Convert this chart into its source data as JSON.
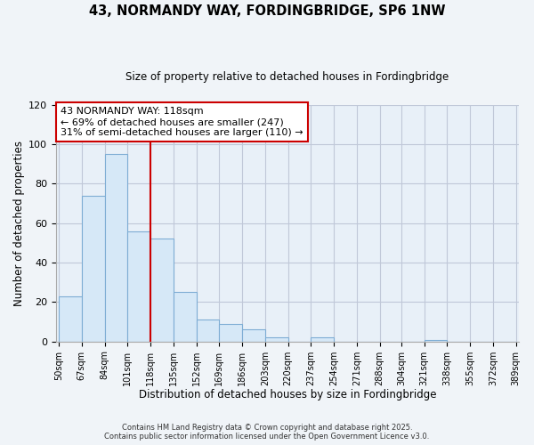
{
  "title": "43, NORMANDY WAY, FORDINGBRIDGE, SP6 1NW",
  "subtitle": "Size of property relative to detached houses in Fordingbridge",
  "xlabel": "Distribution of detached houses by size in Fordingbridge",
  "ylabel": "Number of detached properties",
  "bin_edges": [
    50,
    67,
    84,
    101,
    118,
    135,
    152,
    169,
    186,
    203,
    220,
    237,
    254,
    271,
    288,
    304,
    321,
    338,
    355,
    372,
    389
  ],
  "bin_labels": [
    "50sqm",
    "67sqm",
    "84sqm",
    "101sqm",
    "118sqm",
    "135sqm",
    "152sqm",
    "169sqm",
    "186sqm",
    "203sqm",
    "220sqm",
    "237sqm",
    "254sqm",
    "271sqm",
    "288sqm",
    "304sqm",
    "321sqm",
    "338sqm",
    "355sqm",
    "372sqm",
    "389sqm"
  ],
  "counts": [
    23,
    74,
    95,
    56,
    52,
    25,
    11,
    9,
    6,
    2,
    0,
    2,
    0,
    0,
    0,
    0,
    1,
    0,
    0,
    0
  ],
  "bar_color": "#d6e8f7",
  "bar_edge_color": "#7eadd4",
  "vline_x": 118,
  "vline_color": "#cc0000",
  "annotation_line1": "43 NORMANDY WAY: 118sqm",
  "annotation_line2": "← 69% of detached houses are smaller (247)",
  "annotation_line3": "31% of semi-detached houses are larger (110) →",
  "footer1": "Contains HM Land Registry data © Crown copyright and database right 2025.",
  "footer2": "Contains public sector information licensed under the Open Government Licence v3.0.",
  "ylim": [
    0,
    120
  ],
  "background_color": "#f0f4f8",
  "plot_background_color": "#e8f0f8"
}
